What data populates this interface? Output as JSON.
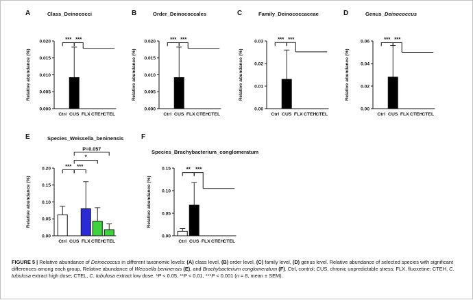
{
  "chart_data": [
    {
      "panel": "A",
      "type": "bar",
      "title": "Class_Deinococci",
      "ylabel": "Relative abundance (%)",
      "categories": [
        "Ctrl",
        "CUS",
        "FLX",
        "CTEH",
        "CTEL"
      ],
      "values": [
        0,
        0.0092,
        0,
        0,
        0
      ],
      "errors": [
        0,
        0.009,
        0,
        0,
        0
      ],
      "fills": [
        "#ffffff",
        "#000000",
        "#ffffff",
        "#ffffff",
        "#ffffff"
      ],
      "ylim": [
        0,
        0.02
      ],
      "yticks": [
        "0.000",
        "0.005",
        "0.010",
        "0.015",
        "0.020"
      ],
      "sig": [
        {
          "a": 0,
          "b": 1,
          "label": "***",
          "level": 0.0195
        },
        {
          "a": 1,
          "span": [
            2,
            4
          ],
          "label": "***",
          "level": 0.0195,
          "drop": 0.0178
        }
      ]
    },
    {
      "panel": "B",
      "type": "bar",
      "title": "Order_Deinococcales",
      "ylabel": "Relative abundance (%)",
      "categories": [
        "Ctrl",
        "CUS",
        "FLX",
        "CTEH",
        "CTEL"
      ],
      "values": [
        0,
        0.0092,
        0,
        0,
        0
      ],
      "errors": [
        0,
        0.009,
        0,
        0,
        0
      ],
      "fills": [
        "#ffffff",
        "#000000",
        "#ffffff",
        "#ffffff",
        "#ffffff"
      ],
      "ylim": [
        0,
        0.02
      ],
      "yticks": [
        "0.000",
        "0.005",
        "0.010",
        "0.015",
        "0.020"
      ],
      "sig": [
        {
          "a": 0,
          "b": 1,
          "label": "***",
          "level": 0.0195
        },
        {
          "a": 1,
          "span": [
            2,
            4
          ],
          "label": "***",
          "level": 0.0195,
          "drop": 0.0178
        }
      ]
    },
    {
      "panel": "C",
      "type": "bar",
      "title": "Family_Deinococcaceae",
      "ylabel": "Relative abundance (%)",
      "categories": [
        "Ctrl",
        "CUS",
        "FLX",
        "CTEH",
        "CTEL"
      ],
      "values": [
        0,
        0.013,
        0,
        0,
        0
      ],
      "errors": [
        0,
        0.013,
        0,
        0,
        0
      ],
      "fills": [
        "#ffffff",
        "#000000",
        "#ffffff",
        "#ffffff",
        "#ffffff"
      ],
      "ylim": [
        0,
        0.03
      ],
      "yticks": [
        "0.00",
        "0.01",
        "0.02",
        "0.03"
      ],
      "sig": [
        {
          "a": 0,
          "b": 1,
          "label": "***",
          "level": 0.0293
        },
        {
          "a": 1,
          "span": [
            2,
            4
          ],
          "label": "***",
          "level": 0.0293,
          "drop": 0.0252
        }
      ]
    },
    {
      "panel": "D",
      "type": "bar",
      "title": "Genus_",
      "title_italic": "Deinococcus",
      "ylabel": "Relative abundance (%)",
      "categories": [
        "Ctrl",
        "CUS",
        "FLX",
        "CTEH",
        "CTEL"
      ],
      "values": [
        0,
        0.028,
        0,
        0,
        0
      ],
      "errors": [
        0,
        0.028,
        0,
        0,
        0
      ],
      "fills": [
        "#ffffff",
        "#000000",
        "#ffffff",
        "#ffffff",
        "#ffffff"
      ],
      "ylim": [
        0,
        0.06
      ],
      "yticks": [
        "0.00",
        "0.02",
        "0.04",
        "0.06"
      ],
      "sig": [
        {
          "a": 0,
          "b": 1,
          "label": "***",
          "level": 0.0585
        },
        {
          "a": 1,
          "span": [
            2,
            4
          ],
          "label": "***",
          "level": 0.0585,
          "drop": 0.05
        }
      ]
    },
    {
      "panel": "E",
      "type": "bar",
      "title": "Species_Weissella_beninensis",
      "ylabel": "Relative abundance (%)",
      "categories": [
        "Ctrl",
        "CUS",
        "FLX",
        "CTEH",
        "CTEL"
      ],
      "values": [
        0.062,
        0,
        0.08,
        0.043,
        0.018
      ],
      "errors": [
        0.025,
        0,
        0.08,
        0.04,
        0.017
      ],
      "fills": [
        "#ffffff",
        "#ffffff",
        "#2b2bd6",
        "#3fd23f",
        "#3fd23f"
      ],
      "ylim": [
        0,
        0.2
      ],
      "yticks": [
        "0.00",
        "0.05",
        "0.10",
        "0.15",
        "0.20"
      ],
      "sig": [
        {
          "a": 0,
          "b": 1,
          "label": "***",
          "level": 0.195
        },
        {
          "a": 1,
          "b": 2,
          "label": "***",
          "level": 0.195
        },
        {
          "a": 1,
          "b": 3,
          "label": "*",
          "level": 0.223
        },
        {
          "a": 1,
          "b": 4,
          "label": "P=0.057",
          "level": 0.247,
          "boldlabel": true
        }
      ]
    },
    {
      "panel": "F",
      "type": "bar",
      "title": "Species_Brachybacterium_conglomeratum",
      "ylabel": "Relative abundance (%)",
      "categories": [
        "Ctrl",
        "CUS",
        "FLX",
        "CTEH",
        "CTEL"
      ],
      "values": [
        0.01,
        0.068,
        0,
        0,
        0
      ],
      "errors": [
        0.006,
        0.05,
        0,
        0,
        0
      ],
      "fills": [
        "#ffffff",
        "#000000",
        "#ffffff",
        "#ffffff",
        "#ffffff"
      ],
      "ylim": [
        0,
        0.15
      ],
      "yticks": [
        "0.00",
        "0.05",
        "0.10",
        "0.15"
      ],
      "sig": [
        {
          "a": 0,
          "b": 1,
          "label": "**",
          "level": 0.14
        },
        {
          "a": 1,
          "span": [
            2,
            4
          ],
          "label": "***",
          "level": 0.14,
          "drop": 0.105
        }
      ]
    }
  ],
  "caption": {
    "label": "FIGURE 5 |",
    "text_1": " Relative abundance of ",
    "italic_1": "Deinococcus",
    "text_2": " in different taxonomic levels: ",
    "a": "(A)",
    "text_3": " class level, ",
    "b": "(B)",
    "text_4": " order level, ",
    "c": "(C)",
    "text_5": " family level, ",
    "d": "(D)",
    "text_6": " genus level. Relative abundance of selected species with significant differences among each group. Relative abundance of ",
    "italic_2": "Weissella beninensis",
    "text_7": " ",
    "e": "(E)",
    "text_8": ", and ",
    "italic_3": "Brachybacterium conglomeratum",
    "text_9": " ",
    "f": "(F)",
    "text_10": ". Ctrl, control; CUS, chronic unpredictable stress; FLX, fluoxetine; CTEH, ",
    "italic_4": "C. tubulosa",
    "text_11": " extract high dose; CTEL, ",
    "italic_5": "C. tubulosa",
    "text_12": " extract low dose. *",
    "italic_p1": "P",
    "text_13": " < 0.05, **",
    "italic_p2": "P",
    "text_14": " < 0.01, ***",
    "italic_p3": "P",
    "text_15": " < 0.001 (",
    "italic_n": "n",
    "text_16": " = 8, mean ± SEM)."
  }
}
